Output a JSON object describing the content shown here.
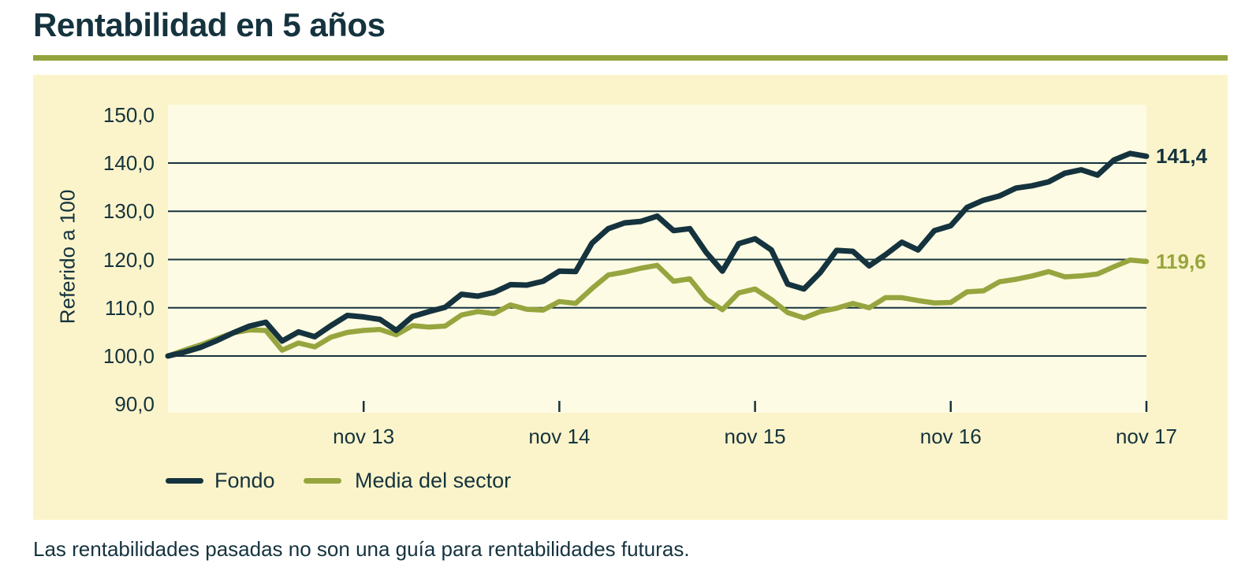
{
  "header": {
    "title": "Rentabilidad en 5 años"
  },
  "footer": {
    "disclaimer": "Las rentabilidades pasadas no son una guía para rentabilidades futuras."
  },
  "colors": {
    "text_navy": "#15333E",
    "accent_green": "#93A33C",
    "panel_bg": "#FBF4CA",
    "plot_bg": "#FEFBE4",
    "grid": "#15333E"
  },
  "chart_data": {
    "type": "line",
    "title": "Rentabilidad en 5 años",
    "ylabel": "Referido a 100",
    "ylim": [
      88,
      152
    ],
    "grid": true,
    "gridline_values": [
      140,
      130,
      120,
      110,
      100
    ],
    "y_ticks": [
      150,
      140,
      130,
      120,
      110,
      100,
      90
    ],
    "y_tick_labels": [
      "150,0",
      "140,0",
      "130,0",
      "120,0",
      "110,0",
      "100,0",
      "90,0"
    ],
    "x_interval": "monthly",
    "x_range_months": [
      0,
      60
    ],
    "x_tick_positions": [
      12,
      24,
      36,
      48,
      60
    ],
    "x_tick_labels": [
      "nov 13",
      "nov 14",
      "nov 15",
      "nov 16",
      "nov 17"
    ],
    "legend_position": "bottom-left",
    "series": [
      {
        "name": "Fondo",
        "color": "#15333E",
        "end_label": "141,4",
        "end_value": 141.4,
        "stroke_width": 7,
        "values": [
          100.0,
          100.8,
          101.8,
          103.2,
          104.8,
          106.2,
          107.0,
          103.1,
          105.0,
          104.0,
          106.3,
          108.4,
          108.1,
          107.6,
          105.3,
          108.2,
          109.2,
          110.1,
          112.8,
          112.4,
          113.2,
          114.8,
          114.7,
          115.5,
          117.6,
          117.5,
          123.4,
          126.4,
          127.6,
          127.9,
          129.0,
          126.0,
          126.4,
          121.5,
          117.6,
          123.3,
          124.3,
          122.0,
          114.9,
          113.9,
          117.3,
          121.9,
          121.7,
          118.7,
          121.0,
          123.6,
          122.0,
          126.0,
          127.0,
          130.8,
          132.3,
          133.2,
          134.8,
          135.3,
          136.1,
          137.9,
          138.6,
          137.5,
          140.6,
          142.0,
          141.4
        ]
      },
      {
        "name": "Media del sector",
        "color": "#97A53F",
        "end_label": "119,6",
        "end_value": 119.6,
        "stroke_width": 6.5,
        "values": [
          100.0,
          101.2,
          102.3,
          103.6,
          104.8,
          105.4,
          105.3,
          101.2,
          102.7,
          101.9,
          103.9,
          104.9,
          105.3,
          105.5,
          104.4,
          106.3,
          106.0,
          106.2,
          108.5,
          109.2,
          108.8,
          110.6,
          109.7,
          109.5,
          111.3,
          110.9,
          114.0,
          116.8,
          117.4,
          118.2,
          118.8,
          115.5,
          116.0,
          111.8,
          109.6,
          113.1,
          113.9,
          111.7,
          109.0,
          107.9,
          109.2,
          109.9,
          110.9,
          110.0,
          112.1,
          112.1,
          111.5,
          111.0,
          111.1,
          113.3,
          113.5,
          115.4,
          115.9,
          116.6,
          117.5,
          116.4,
          116.6,
          117.0,
          118.5,
          119.9,
          119.6
        ]
      }
    ]
  }
}
